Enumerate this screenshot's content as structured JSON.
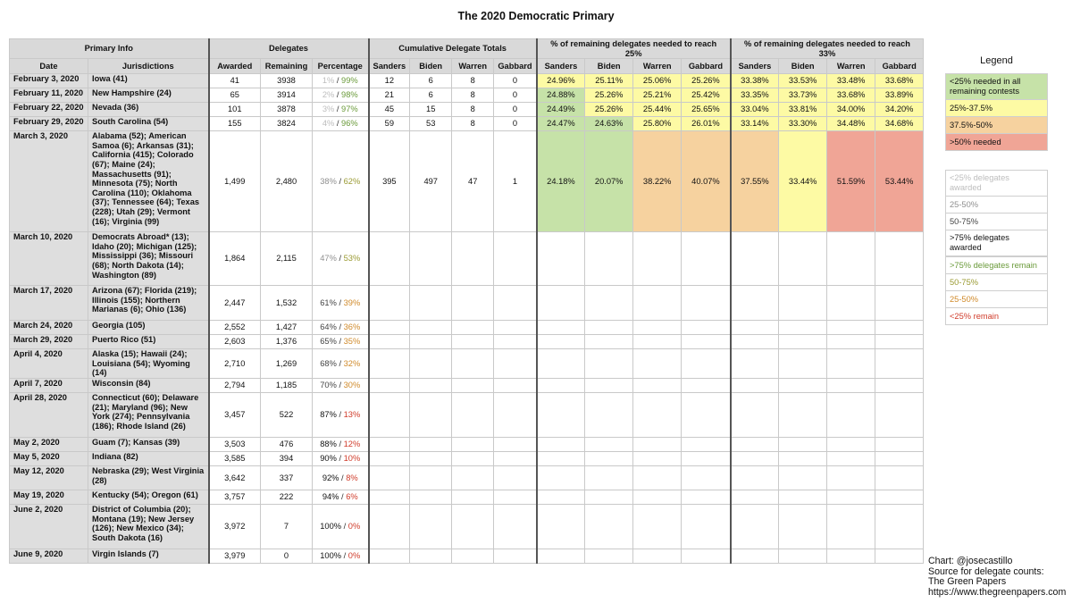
{
  "title": "The 2020 Democratic Primary",
  "headers": {
    "primary_info": "Primary Info",
    "delegates": "Delegates",
    "cumulative": "Cumulative Delegate Totals",
    "need25": "% of remaining delegates needed to reach 25%",
    "need33": "% of remaining delegates needed to reach 33%",
    "date": "Date",
    "jurisdictions": "Jurisdictions",
    "awarded": "Awarded",
    "remaining": "Remaining",
    "percentage": "Percentage",
    "candidates": [
      "Sanders",
      "Biden",
      "Warren",
      "Gabbard"
    ]
  },
  "rows": [
    {
      "date": "February 3, 2020",
      "jur": "Iowa (41)",
      "awarded": "41",
      "remaining": "3938",
      "pa": "1%",
      "pr": "99%",
      "ac": "aw-lt25",
      "rc": "rm-gt75",
      "cum": [
        "12",
        "6",
        "8",
        "0"
      ],
      "n25": [
        "24.96%",
        "25.11%",
        "25.06%",
        "25.26%"
      ],
      "c25": [
        "yellow",
        "yellow",
        "yellow",
        "yellow"
      ],
      "n33": [
        "33.38%",
        "33.53%",
        "33.48%",
        "33.68%"
      ],
      "c33": [
        "yellow",
        "yellow",
        "yellow",
        "yellow"
      ],
      "h": 16
    },
    {
      "date": "February 11, 2020",
      "jur": "New Hampshire (24)",
      "awarded": "65",
      "remaining": "3914",
      "pa": "2%",
      "pr": "98%",
      "ac": "aw-lt25",
      "rc": "rm-gt75",
      "cum": [
        "21",
        "6",
        "8",
        "0"
      ],
      "n25": [
        "24.88%",
        "25.26%",
        "25.21%",
        "25.42%"
      ],
      "c25": [
        "green",
        "yellow",
        "yellow",
        "yellow"
      ],
      "n33": [
        "33.35%",
        "33.73%",
        "33.68%",
        "33.89%"
      ],
      "c33": [
        "yellow",
        "yellow",
        "yellow",
        "yellow"
      ],
      "h": 16
    },
    {
      "date": "February 22, 2020",
      "jur": "Nevada (36)",
      "awarded": "101",
      "remaining": "3878",
      "pa": "3%",
      "pr": "97%",
      "ac": "aw-lt25",
      "rc": "rm-gt75",
      "cum": [
        "45",
        "15",
        "8",
        "0"
      ],
      "n25": [
        "24.49%",
        "25.26%",
        "25.44%",
        "25.65%"
      ],
      "c25": [
        "green",
        "yellow",
        "yellow",
        "yellow"
      ],
      "n33": [
        "33.04%",
        "33.81%",
        "34.00%",
        "34.20%"
      ],
      "c33": [
        "yellow",
        "yellow",
        "yellow",
        "yellow"
      ],
      "h": 16
    },
    {
      "date": "February 29, 2020",
      "jur": "South Carolina (54)",
      "awarded": "155",
      "remaining": "3824",
      "pa": "4%",
      "pr": "96%",
      "ac": "aw-lt25",
      "rc": "rm-gt75",
      "cum": [
        "59",
        "53",
        "8",
        "0"
      ],
      "n25": [
        "24.47%",
        "24.63%",
        "25.80%",
        "26.01%"
      ],
      "c25": [
        "green",
        "green",
        "yellow",
        "yellow"
      ],
      "n33": [
        "33.14%",
        "33.30%",
        "34.48%",
        "34.68%"
      ],
      "c33": [
        "yellow",
        "yellow",
        "yellow",
        "yellow"
      ],
      "h": 16
    },
    {
      "date": "March 3, 2020",
      "jur": "Alabama (52); American Samoa (6); Arkansas (31); California (415); Colorado (67); Maine (24); Massachusetts (91); Minnesota (75); North Carolina (110); Oklahoma (37); Tennessee (64); Texas (228); Utah (29); Vermont (16); Virginia (99)",
      "awarded": "1,499",
      "remaining": "2,480",
      "pa": "38%",
      "pr": "62%",
      "ac": "aw-25-50",
      "rc": "rm-50-75",
      "cum": [
        "395",
        "497",
        "47",
        "1"
      ],
      "n25": [
        "24.18%",
        "20.07%",
        "38.22%",
        "40.07%"
      ],
      "c25": [
        "green",
        "green",
        "orange",
        "orange"
      ],
      "n33": [
        "37.55%",
        "33.44%",
        "51.59%",
        "53.44%"
      ],
      "c33": [
        "orange",
        "yellow",
        "red",
        "red"
      ],
      "h": 113
    },
    {
      "date": "March 10, 2020",
      "jur": "Democrats Abroad* (13); Idaho (20); Michigan (125); Mississippi (36); Missouri (68); North Dakota (14); Washington (89)",
      "awarded": "1,864",
      "remaining": "2,115",
      "pa": "47%",
      "pr": "53%",
      "ac": "aw-25-50",
      "rc": "rm-50-75",
      "cum": [
        "",
        "",
        "",
        ""
      ],
      "n25": [
        "",
        "",
        "",
        ""
      ],
      "c25": [
        "",
        "",
        "",
        ""
      ],
      "n33": [
        "",
        "",
        "",
        ""
      ],
      "c33": [
        "",
        "",
        "",
        ""
      ],
      "h": 60
    },
    {
      "date": "March 17, 2020",
      "jur": "Arizona (67); Florida (219); Illinois (155); Northern Marianas (6); Ohio (136)",
      "awarded": "2,447",
      "remaining": "1,532",
      "pa": "61%",
      "pr": "39%",
      "ac": "aw-50-75",
      "rc": "rm-25-50",
      "cum": [
        "",
        "",
        "",
        ""
      ],
      "n25": [
        "",
        "",
        "",
        ""
      ],
      "c25": [
        "",
        "",
        "",
        ""
      ],
      "n33": [
        "",
        "",
        "",
        ""
      ],
      "c33": [
        "",
        "",
        "",
        ""
      ],
      "h": 39
    },
    {
      "date": "March 24, 2020",
      "jur": "Georgia (105)",
      "awarded": "2,552",
      "remaining": "1,427",
      "pa": "64%",
      "pr": "36%",
      "ac": "aw-50-75",
      "rc": "rm-25-50",
      "cum": [
        "",
        "",
        "",
        ""
      ],
      "n25": [
        "",
        "",
        "",
        ""
      ],
      "c25": [
        "",
        "",
        "",
        ""
      ],
      "n33": [
        "",
        "",
        "",
        ""
      ],
      "c33": [
        "",
        "",
        "",
        ""
      ],
      "h": 16
    },
    {
      "date": "March 29, 2020",
      "jur": "Puerto Rico (51)",
      "awarded": "2,603",
      "remaining": "1,376",
      "pa": "65%",
      "pr": "35%",
      "ac": "aw-50-75",
      "rc": "rm-25-50",
      "cum": [
        "",
        "",
        "",
        ""
      ],
      "n25": [
        "",
        "",
        "",
        ""
      ],
      "c25": [
        "",
        "",
        "",
        ""
      ],
      "n33": [
        "",
        "",
        "",
        ""
      ],
      "c33": [
        "",
        "",
        "",
        ""
      ],
      "h": 16
    },
    {
      "date": "April 4, 2020",
      "jur": "Alaska (15); Hawaii (24); Louisiana (54); Wyoming (14)",
      "awarded": "2,710",
      "remaining": "1,269",
      "pa": "68%",
      "pr": "32%",
      "ac": "aw-50-75",
      "rc": "rm-25-50",
      "cum": [
        "",
        "",
        "",
        ""
      ],
      "n25": [
        "",
        "",
        "",
        ""
      ],
      "c25": [
        "",
        "",
        "",
        ""
      ],
      "n33": [
        "",
        "",
        "",
        ""
      ],
      "c33": [
        "",
        "",
        "",
        ""
      ],
      "h": 27
    },
    {
      "date": "April 7, 2020",
      "jur": "Wisconsin (84)",
      "awarded": "2,794",
      "remaining": "1,185",
      "pa": "70%",
      "pr": "30%",
      "ac": "aw-50-75",
      "rc": "rm-25-50",
      "cum": [
        "",
        "",
        "",
        ""
      ],
      "n25": [
        "",
        "",
        "",
        ""
      ],
      "c25": [
        "",
        "",
        "",
        ""
      ],
      "n33": [
        "",
        "",
        "",
        ""
      ],
      "c33": [
        "",
        "",
        "",
        ""
      ],
      "h": 16
    },
    {
      "date": "April 28, 2020",
      "jur": "Connecticut (60); Delaware (21); Maryland (96); New York (274); Pennsylvania (186); Rhode Island (26)",
      "awarded": "3,457",
      "remaining": "522",
      "pa": "87%",
      "pr": "13%",
      "ac": "aw-gt75",
      "rc": "rm-lt25",
      "cum": [
        "",
        "",
        "",
        ""
      ],
      "n25": [
        "",
        "",
        "",
        ""
      ],
      "c25": [
        "",
        "",
        "",
        ""
      ],
      "n33": [
        "",
        "",
        "",
        ""
      ],
      "c33": [
        "",
        "",
        "",
        ""
      ],
      "h": 50
    },
    {
      "date": "May 2, 2020",
      "jur": "Guam (7); Kansas (39)",
      "awarded": "3,503",
      "remaining": "476",
      "pa": "88%",
      "pr": "12%",
      "ac": "aw-gt75",
      "rc": "rm-lt25",
      "cum": [
        "",
        "",
        "",
        ""
      ],
      "n25": [
        "",
        "",
        "",
        ""
      ],
      "c25": [
        "",
        "",
        "",
        ""
      ],
      "n33": [
        "",
        "",
        "",
        ""
      ],
      "c33": [
        "",
        "",
        "",
        ""
      ],
      "h": 16
    },
    {
      "date": "May 5, 2020",
      "jur": "Indiana (82)",
      "awarded": "3,585",
      "remaining": "394",
      "pa": "90%",
      "pr": "10%",
      "ac": "aw-gt75",
      "rc": "rm-lt25",
      "cum": [
        "",
        "",
        "",
        ""
      ],
      "n25": [
        "",
        "",
        "",
        ""
      ],
      "c25": [
        "",
        "",
        "",
        ""
      ],
      "n33": [
        "",
        "",
        "",
        ""
      ],
      "c33": [
        "",
        "",
        "",
        ""
      ],
      "h": 16
    },
    {
      "date": "May 12, 2020",
      "jur": "Nebraska (29); West Virginia (28)",
      "awarded": "3,642",
      "remaining": "337",
      "pa": "92%",
      "pr": "8%",
      "ac": "aw-gt75",
      "rc": "rm-lt25",
      "cum": [
        "",
        "",
        "",
        ""
      ],
      "n25": [
        "",
        "",
        "",
        ""
      ],
      "c25": [
        "",
        "",
        "",
        ""
      ],
      "n33": [
        "",
        "",
        "",
        ""
      ],
      "c33": [
        "",
        "",
        "",
        ""
      ],
      "h": 27
    },
    {
      "date": "May 19, 2020",
      "jur": "Kentucky (54); Oregon (61)",
      "awarded": "3,757",
      "remaining": "222",
      "pa": "94%",
      "pr": "6%",
      "ac": "aw-gt75",
      "rc": "rm-lt25",
      "cum": [
        "",
        "",
        "",
        ""
      ],
      "n25": [
        "",
        "",
        "",
        ""
      ],
      "c25": [
        "",
        "",
        "",
        ""
      ],
      "n33": [
        "",
        "",
        "",
        ""
      ],
      "c33": [
        "",
        "",
        "",
        ""
      ],
      "h": 16
    },
    {
      "date": "June 2, 2020",
      "jur": "District of Columbia (20); Montana (19); New Jersey (126); New Mexico (34); South Dakota (16)",
      "awarded": "3,972",
      "remaining": "7",
      "pa": "100%",
      "pr": "0%",
      "ac": "aw-gt75",
      "rc": "rm-lt25",
      "cum": [
        "",
        "",
        "",
        ""
      ],
      "n25": [
        "",
        "",
        "",
        ""
      ],
      "c25": [
        "",
        "",
        "",
        ""
      ],
      "n33": [
        "",
        "",
        "",
        ""
      ],
      "c33": [
        "",
        "",
        "",
        ""
      ],
      "h": 50
    },
    {
      "date": "June 9, 2020",
      "jur": "Virgin Islands (7)",
      "awarded": "3,979",
      "remaining": "0",
      "pa": "100%",
      "pr": "0%",
      "ac": "aw-gt75",
      "rc": "rm-lt25",
      "cum": [
        "",
        "",
        "",
        ""
      ],
      "n25": [
        "",
        "",
        "",
        ""
      ],
      "c25": [
        "",
        "",
        "",
        ""
      ],
      "n33": [
        "",
        "",
        "",
        ""
      ],
      "c33": [
        "",
        "",
        "",
        ""
      ],
      "h": 16
    }
  ],
  "legend": {
    "title": "Legend",
    "need": [
      {
        "label": "<25% needed in all remaining contests",
        "color": "#c6e2a8"
      },
      {
        "label": "25%-37.5%",
        "color": "#fdfaa4"
      },
      {
        "label": "37.5%-50%",
        "color": "#f6d29f"
      },
      {
        "label": ">50% needed",
        "color": "#f0a596"
      }
    ],
    "awarded": [
      {
        "label": "<25% delegates awarded",
        "color": "#bdbdbd"
      },
      {
        "label": "25-50%",
        "color": "#8f8f8f"
      },
      {
        "label": "50-75%",
        "color": "#444444"
      },
      {
        "label": ">75% delegates awarded",
        "color": "#111111"
      }
    ],
    "remain": [
      {
        "label": ">75% delegates remain",
        "color": "#6a9a3a"
      },
      {
        "label": "50-75%",
        "color": "#9a9a32"
      },
      {
        "label": "25-50%",
        "color": "#d08a2a"
      },
      {
        "label": "<25% remain",
        "color": "#d03b2a"
      }
    ]
  },
  "credit": {
    "line1": "Chart: @josecastillo",
    "line2": "Source for delegate counts:",
    "line3": "The Green Papers",
    "line4": "https://www.thegreenpapers.com"
  }
}
